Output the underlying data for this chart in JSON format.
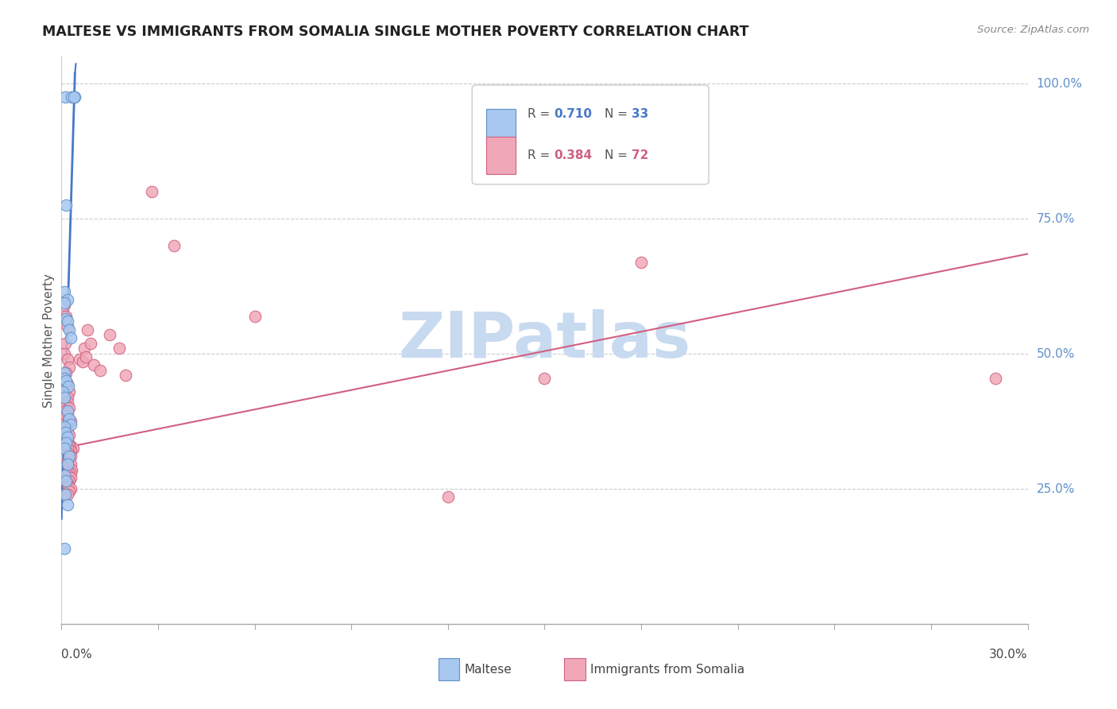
{
  "title": "MALTESE VS IMMIGRANTS FROM SOMALIA SINGLE MOTHER POVERTY CORRELATION CHART",
  "source": "Source: ZipAtlas.com",
  "ylabel": "Single Mother Poverty",
  "maltese_color": "#a8c8f0",
  "somalia_color": "#f0a8b8",
  "maltese_edge_color": "#6090c8",
  "somalia_edge_color": "#d06080",
  "maltese_line_color": "#4878c8",
  "somalia_line_color": "#d06080",
  "y_label_color": "#6090c8",
  "watermark": "ZIPatlas",
  "watermark_color": "#c8daf0",
  "legend_r1": "0.710",
  "legend_n1": "33",
  "legend_r2": "0.384",
  "legend_n2": "72",
  "xlim_min": 0.0,
  "xlim_max": 0.3,
  "ylim_min": 0.0,
  "ylim_max": 1.05,
  "maltese_x": [
    0.0012,
    0.0032,
    0.0042,
    0.0038,
    0.0015,
    0.001,
    0.002,
    0.0008,
    0.0015,
    0.0018,
    0.0025,
    0.003,
    0.001,
    0.0008,
    0.0015,
    0.0022,
    0.0005,
    0.001,
    0.0018,
    0.0025,
    0.003,
    0.0008,
    0.0012,
    0.002,
    0.0015,
    0.001,
    0.0025,
    0.0018,
    0.0008,
    0.0015,
    0.0012,
    0.002,
    0.001
  ],
  "maltese_y": [
    0.975,
    0.975,
    0.975,
    0.975,
    0.775,
    0.615,
    0.6,
    0.595,
    0.565,
    0.56,
    0.545,
    0.53,
    0.465,
    0.455,
    0.45,
    0.44,
    0.43,
    0.42,
    0.395,
    0.38,
    0.37,
    0.365,
    0.355,
    0.345,
    0.335,
    0.325,
    0.31,
    0.295,
    0.275,
    0.265,
    0.24,
    0.22,
    0.14
  ],
  "somalia_x": [
    0.001,
    0.0015,
    0.002,
    0.0012,
    0.0008,
    0.0018,
    0.0025,
    0.0015,
    0.001,
    0.002,
    0.0015,
    0.0012,
    0.0025,
    0.0018,
    0.001,
    0.002,
    0.0015,
    0.0025,
    0.0012,
    0.0018,
    0.0015,
    0.0022,
    0.0028,
    0.002,
    0.0015,
    0.001,
    0.0018,
    0.0025,
    0.0012,
    0.002,
    0.0015,
    0.003,
    0.0035,
    0.0025,
    0.003,
    0.0028,
    0.002,
    0.0025,
    0.003,
    0.0022,
    0.0018,
    0.0028,
    0.0025,
    0.0032,
    0.0028,
    0.0022,
    0.0018,
    0.003,
    0.0025,
    0.0018,
    0.0022,
    0.003,
    0.0025,
    0.0018,
    0.0055,
    0.007,
    0.008,
    0.0065,
    0.009,
    0.0075,
    0.01,
    0.012,
    0.015,
    0.018,
    0.02,
    0.028,
    0.035,
    0.06,
    0.12,
    0.15,
    0.29,
    0.18
  ],
  "somalia_y": [
    0.59,
    0.57,
    0.55,
    0.52,
    0.5,
    0.49,
    0.475,
    0.465,
    0.455,
    0.445,
    0.44,
    0.435,
    0.43,
    0.42,
    0.415,
    0.41,
    0.405,
    0.4,
    0.395,
    0.39,
    0.385,
    0.38,
    0.375,
    0.37,
    0.365,
    0.36,
    0.355,
    0.35,
    0.345,
    0.34,
    0.335,
    0.33,
    0.325,
    0.33,
    0.32,
    0.32,
    0.325,
    0.315,
    0.31,
    0.305,
    0.3,
    0.295,
    0.29,
    0.285,
    0.28,
    0.28,
    0.275,
    0.27,
    0.265,
    0.26,
    0.255,
    0.25,
    0.245,
    0.24,
    0.49,
    0.51,
    0.545,
    0.485,
    0.52,
    0.495,
    0.48,
    0.47,
    0.535,
    0.51,
    0.46,
    0.8,
    0.7,
    0.57,
    0.235,
    0.455,
    0.455,
    0.67
  ],
  "maltese_line_x0": 0.0,
  "maltese_line_y0": 0.195,
  "maltese_line_x1": 0.0042,
  "maltese_line_y1": 1.02,
  "maltese_line_dashed_x0": 0.0042,
  "maltese_line_dashed_y0": 1.02,
  "maltese_line_dashed_x1": 0.005,
  "maltese_line_dashed_y1": 1.07,
  "somalia_line_x0": 0.0,
  "somalia_line_y0": 0.325,
  "somalia_line_x1": 0.3,
  "somalia_line_y1": 0.685
}
